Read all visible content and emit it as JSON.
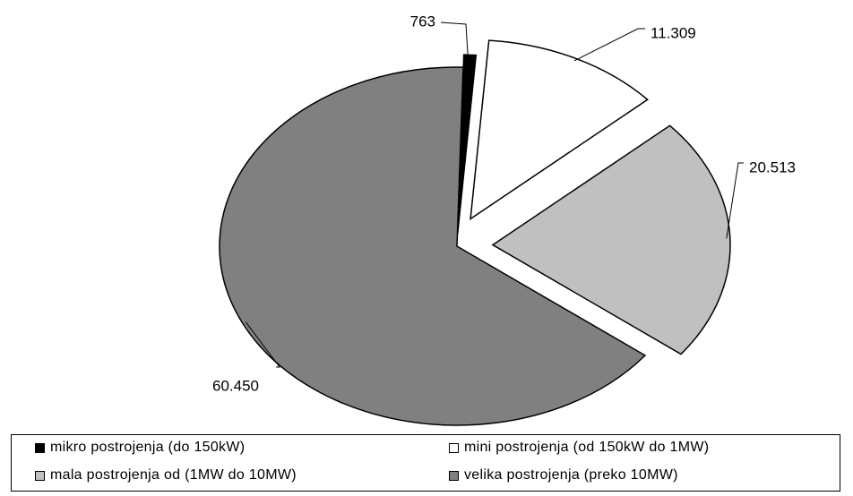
{
  "chart_data": {
    "type": "pie",
    "title": "",
    "exploded": true,
    "slices": [
      {
        "label": "mikro postrojenja (do 150kW)",
        "value": 763,
        "display": "763",
        "color": "#000000"
      },
      {
        "label": "mini postrojenja (od 150kW do 1MW)",
        "value": 11309,
        "display": "11.309",
        "color": "#ffffff"
      },
      {
        "label": "mala postrojenja od (1MW do 10MW)",
        "value": 20513,
        "display": "20.513",
        "color": "#c0c0c0"
      },
      {
        "label": "velika postrojenja (preko 10MW)",
        "value": 60450,
        "display": "60.450",
        "color": "#808080"
      }
    ],
    "legend": {
      "placement": "bottom",
      "items": [
        "mikro postrojenja (do 150kW)",
        "mini postrojenja (od 150kW do 1MW)",
        "mala postrojenja od (1MW do 10MW)",
        "velika postrojenja (preko 10MW)"
      ]
    }
  }
}
